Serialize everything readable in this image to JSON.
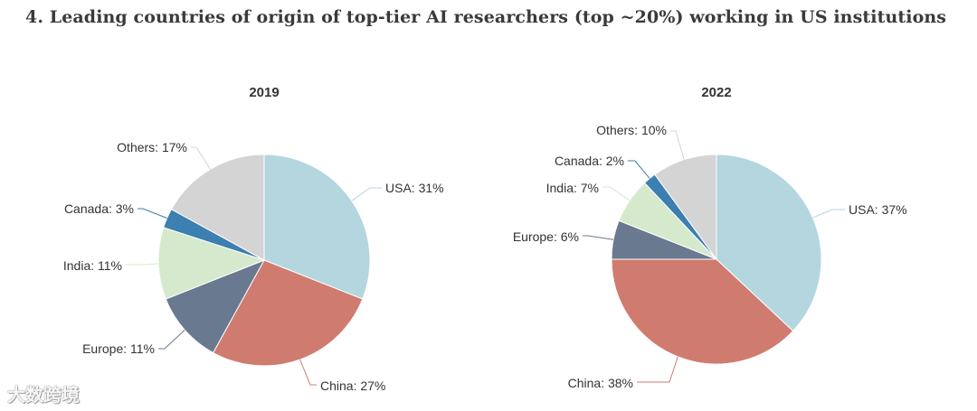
{
  "title": "4. Leading countries of origin of top-tier AI researchers (top ~20%) working in US institutions",
  "watermark": "大数跨境",
  "colors": {
    "USA": "#b4d6df",
    "China": "#d07b6f",
    "Europe": "#687990",
    "India": "#d5eacc",
    "Canada": "#3c7fb1",
    "Others": "#d4d4d4"
  },
  "chart_data": [
    {
      "type": "pie",
      "title": "2019",
      "categories": [
        "USA",
        "China",
        "Europe",
        "India",
        "Canada",
        "Others"
      ],
      "values": [
        31,
        27,
        11,
        11,
        3,
        17
      ],
      "labels": [
        "USA: 31%",
        "China: 27%",
        "Europe: 11%",
        "India: 11%",
        "Canada: 3%",
        "Others: 17%"
      ]
    },
    {
      "type": "pie",
      "title": "2022",
      "categories": [
        "USA",
        "China",
        "Europe",
        "India",
        "Canada",
        "Others"
      ],
      "values": [
        37,
        38,
        6,
        7,
        2,
        10
      ],
      "labels": [
        "USA: 37%",
        "China: 38%",
        "Europe: 6%",
        "India: 7%",
        "Canada: 2%",
        "Others: 10%"
      ]
    }
  ]
}
